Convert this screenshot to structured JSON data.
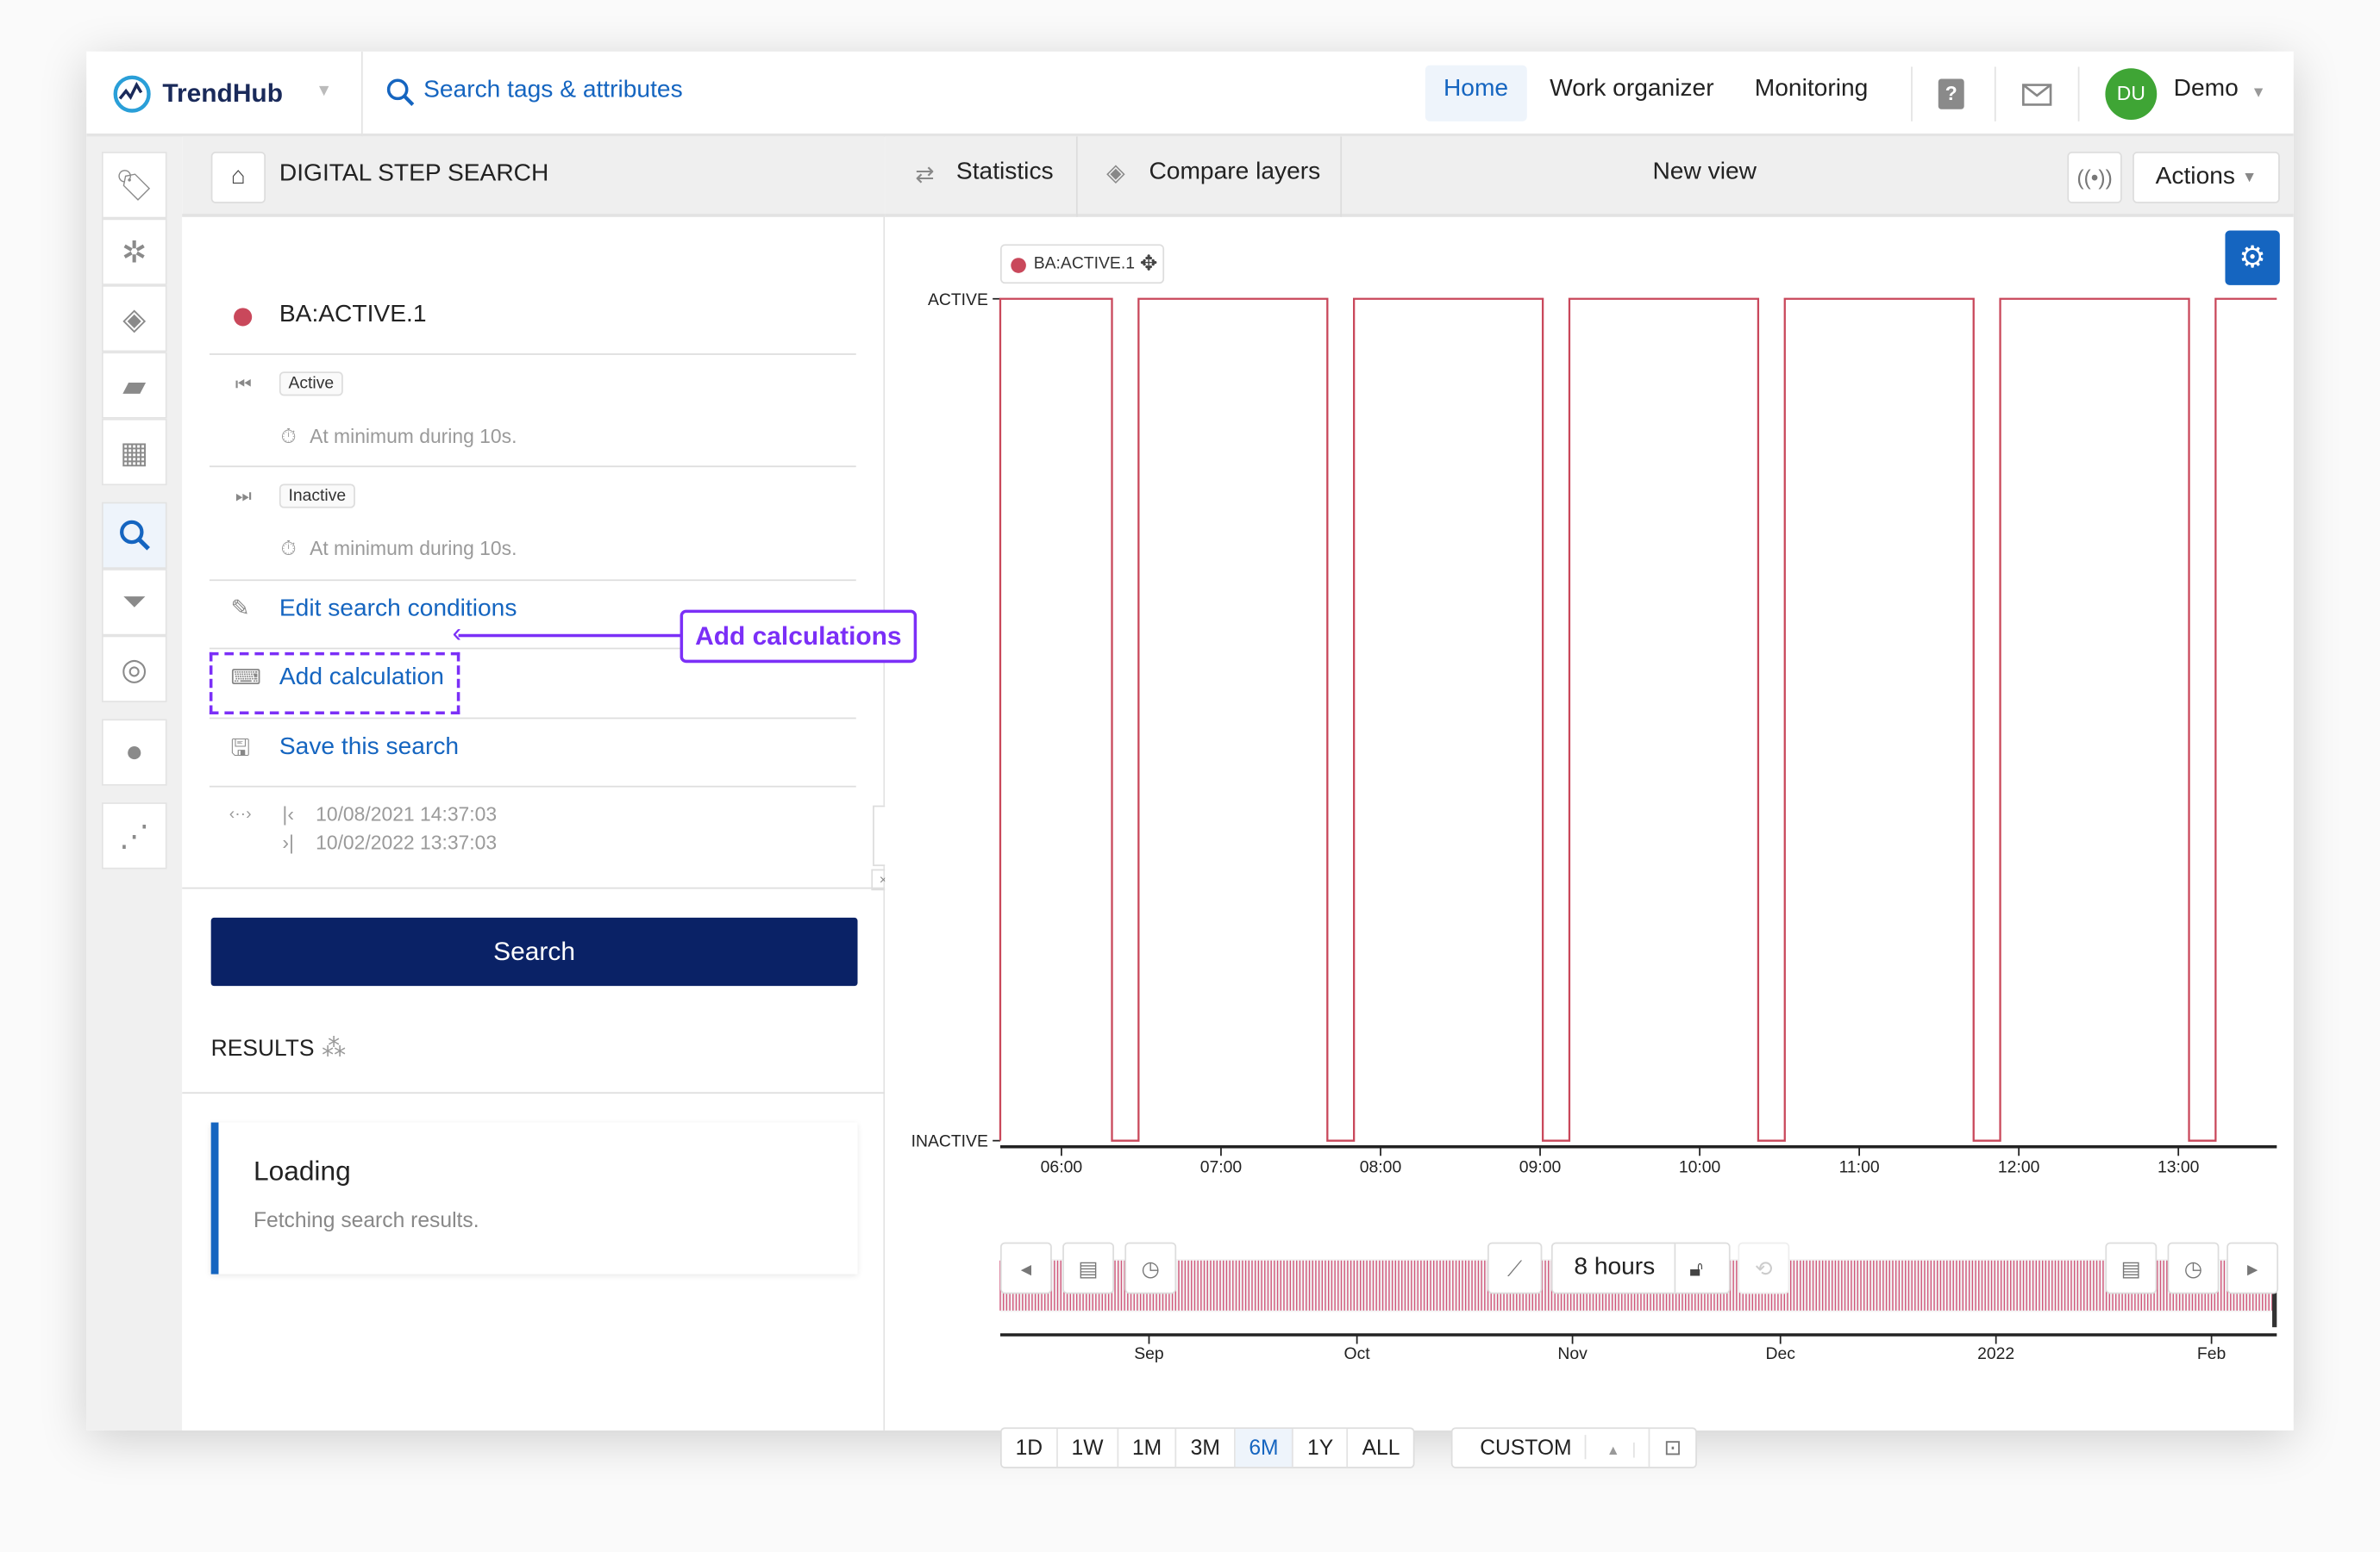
{
  "app": {
    "name": "TrendHub",
    "search_placeholder": "Search tags & attributes"
  },
  "nav": {
    "items": [
      "Home",
      "Work organizer",
      "Monitoring"
    ],
    "active": "Home",
    "user_initials": "DU",
    "user_name": "Demo",
    "avatar_color": "#3fa535"
  },
  "rail": {
    "icons": [
      "tag-icon",
      "calculator-icon",
      "layers-icon",
      "comment-icon",
      "dashboard-icon",
      "search-icon",
      "filter-icon",
      "fingerprint-icon",
      "lightbulb-icon",
      "graph-icon"
    ],
    "active": "search-icon"
  },
  "left_panel": {
    "title": "DIGITAL STEP SEARCH",
    "tag": "BA:ACTIVE.1",
    "tag_color": "#c9485b",
    "conditions": [
      {
        "state": "Active",
        "duration": "At minimum during 10s."
      },
      {
        "state": "Inactive",
        "duration": "At minimum during 10s."
      }
    ],
    "actions": {
      "edit": "Edit search conditions",
      "add_calc": "Add calculation",
      "save": "Save this search"
    },
    "range": {
      "start": "10/08/2021 14:37:03",
      "end": "10/02/2022 13:37:03"
    },
    "search_button": "Search",
    "results_label": "RESULTS",
    "loading_title": "Loading",
    "loading_text": "Fetching search results."
  },
  "annotation": {
    "text": "Add calculations",
    "color": "#7b2ff7"
  },
  "right_panel": {
    "tabs": [
      "Statistics",
      "Compare layers"
    ],
    "view_title": "New view",
    "actions_label": "Actions",
    "legend_tag": "BA:ACTIVE.1",
    "accent": "#1565c0"
  },
  "time_controls": {
    "duration": "8 hours",
    "presets": [
      "1D",
      "1W",
      "1M",
      "3M",
      "6M",
      "1Y",
      "ALL"
    ],
    "active_preset": "6M",
    "custom_label": "CUSTOM"
  },
  "chart_data": {
    "type": "line",
    "step": true,
    "series": [
      {
        "name": "BA:ACTIVE.1",
        "color": "#c9485b",
        "points": [
          [
            "05:37",
            "ACTIVE"
          ],
          [
            "06:19",
            "INACTIVE"
          ],
          [
            "06:29",
            "ACTIVE"
          ],
          [
            "07:40",
            "INACTIVE"
          ],
          [
            "07:50",
            "ACTIVE"
          ],
          [
            "09:01",
            "INACTIVE"
          ],
          [
            "09:11",
            "ACTIVE"
          ],
          [
            "10:22",
            "INACTIVE"
          ],
          [
            "10:32",
            "ACTIVE"
          ],
          [
            "11:43",
            "INACTIVE"
          ],
          [
            "11:53",
            "ACTIVE"
          ],
          [
            "13:04",
            "INACTIVE"
          ],
          [
            "13:14",
            "ACTIVE"
          ],
          [
            "13:37",
            "ACTIVE"
          ]
        ]
      }
    ],
    "y_categories": [
      "INACTIVE",
      "ACTIVE"
    ],
    "x_range": [
      "05:37",
      "13:37"
    ],
    "x_ticks": [
      "06:00",
      "07:00",
      "08:00",
      "09:00",
      "10:00",
      "11:00",
      "12:00",
      "13:00"
    ],
    "navigator_ticks": [
      "Sep",
      "Oct",
      "Nov",
      "Dec",
      "2022",
      "Feb"
    ]
  }
}
